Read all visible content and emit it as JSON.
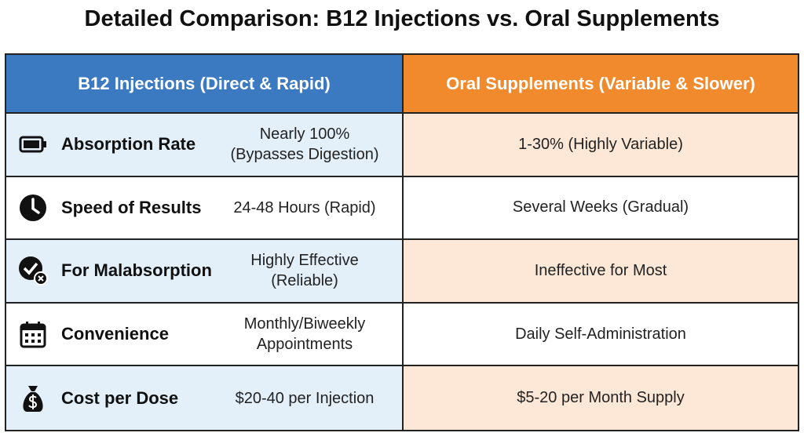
{
  "header": {
    "title": "Detailed Comparison: B12 Injections vs. Oral Supplements"
  },
  "table": {
    "columns": [
      "B12 Injections (Direct & Rapid)",
      "Oral Supplements (Variable & Slower)"
    ],
    "rows": [
      {
        "label": "Absorption Rate",
        "injection": "Nearly 100%\n(Bypasses Digestion)",
        "oral": "1-30% (Highly Variable)"
      },
      {
        "label": "Speed of Results",
        "injection": "24-48 Hours (Rapid)",
        "oral": "Several Weeks (Gradual)"
      },
      {
        "label": "For Malabsorption",
        "injection": "Highly Effective\n(Reliable)",
        "oral": "Ineffective for Most"
      },
      {
        "label": "Convenience",
        "injection": "Monthly/Biweekly\nAppointments",
        "oral": "Daily Self-Administration"
      },
      {
        "label": "Cost per Dose",
        "injection": "$20-40 per Injection",
        "oral": "$5-20 per Month Supply"
      }
    ]
  }
}
